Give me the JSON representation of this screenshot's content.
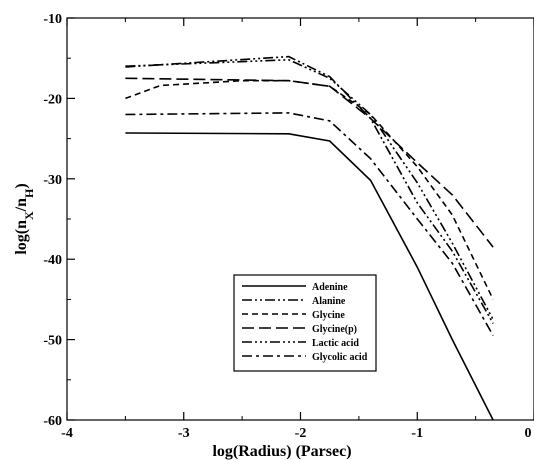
{
  "chart_data": {
    "type": "line",
    "xlabel": "log(Radius) (Parsec)",
    "ylabel": "log(n_X/n_H)",
    "xlim": [
      -4,
      0
    ],
    "ylim": [
      -60,
      -10
    ],
    "xticks": [
      "-4",
      "-3",
      "-2",
      "-1",
      "0"
    ],
    "yticks": [
      "-10",
      "-20",
      "-30",
      "-40",
      "-50",
      "-60"
    ],
    "legend_position": "bottom-center",
    "series": [
      {
        "name": "Adenine",
        "dash": "",
        "x": [
          -3.5,
          -2.1,
          -1.75,
          -1.4,
          -1.0,
          -0.7,
          -0.35
        ],
        "y": [
          -24.3,
          -24.4,
          -25.3,
          -30.2,
          -41.0,
          -50.0,
          -60.0
        ]
      },
      {
        "name": "Alanine",
        "dash": "10,3,2,3,2,3",
        "x": [
          -3.5,
          -2.1,
          -1.75,
          -1.4,
          -1.0,
          -0.7,
          -0.35
        ],
        "y": [
          -16.1,
          -14.8,
          -17.3,
          -22.5,
          -33.0,
          -39.0,
          -48.0
        ]
      },
      {
        "name": "Glycine",
        "dash": "6,4",
        "x": [
          -3.5,
          -3.2,
          -2.5,
          -2.1,
          -1.75,
          -1.4,
          -1.0,
          -0.7,
          -0.35
        ],
        "y": [
          -20.0,
          -18.4,
          -17.8,
          -17.8,
          -18.5,
          -22.0,
          -28.5,
          -34.5,
          -45.0
        ]
      },
      {
        "name": "Glycine(p)",
        "dash": "12,5",
        "x": [
          -3.5,
          -2.1,
          -1.75,
          -1.4,
          -1.0,
          -0.7,
          -0.35
        ],
        "y": [
          -17.5,
          -17.8,
          -18.5,
          -22.5,
          -28.0,
          -32.0,
          -38.5
        ]
      },
      {
        "name": "Lactic acid",
        "dash": "10,3,2,3,2,3,2,3",
        "x": [
          -3.5,
          -2.1,
          -1.75,
          -1.4,
          -1.0,
          -0.7,
          -0.35
        ],
        "y": [
          -16.0,
          -15.2,
          -17.5,
          -22.0,
          -30.5,
          -38.0,
          -47.5
        ]
      },
      {
        "name": "Glycolic acid",
        "dash": "10,4,3,4",
        "x": [
          -3.5,
          -2.1,
          -1.75,
          -1.4,
          -1.0,
          -0.7,
          -0.35
        ],
        "y": [
          -22.0,
          -21.8,
          -22.8,
          -27.5,
          -35.0,
          -40.5,
          -49.5
        ]
      }
    ]
  }
}
